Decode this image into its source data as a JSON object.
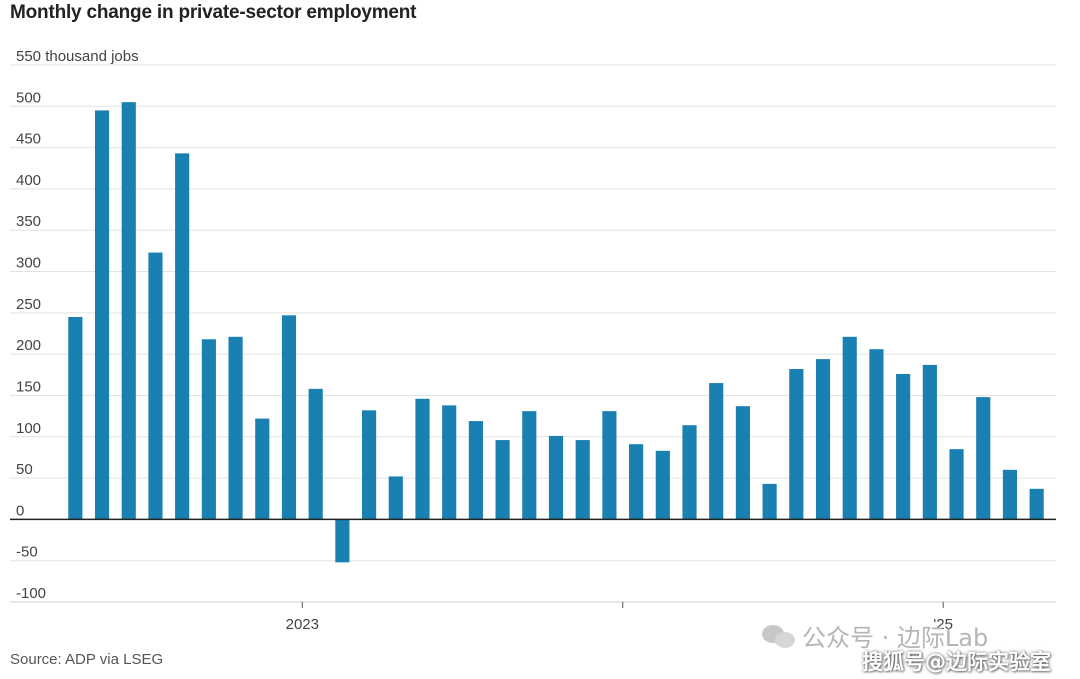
{
  "title": "Monthly change in private-sector employment",
  "source": "Source: ADP via LSEG",
  "watermark": {
    "line1": "公众号 · 边际Lab",
    "line2": "搜狐号@边际实验室"
  },
  "chart_data": {
    "type": "bar",
    "title": "Monthly change in private-sector employment",
    "ylabel": "thousand jobs",
    "ylim": [
      -100,
      550
    ],
    "yticks": [
      -100,
      -50,
      0,
      50,
      100,
      150,
      200,
      250,
      300,
      350,
      400,
      450,
      500,
      550
    ],
    "ytick_labels": [
      "-100",
      "-50",
      "0",
      "50",
      "100",
      "150",
      "200",
      "250",
      "300",
      "350",
      "400",
      "450",
      "500",
      "550 thousand jobs"
    ],
    "xtick_labels": [
      {
        "after_index": 8,
        "label": "2023"
      },
      {
        "after_index": 20,
        "label": ""
      },
      {
        "after_index": 32,
        "label": "'25"
      }
    ],
    "grid": true,
    "color": "#1a7fb1",
    "values": [
      245,
      495,
      505,
      323,
      443,
      218,
      221,
      122,
      247,
      158,
      -52,
      132,
      52,
      146,
      138,
      119,
      96,
      131,
      101,
      96,
      131,
      91,
      83,
      114,
      165,
      137,
      43,
      182,
      194,
      221,
      206,
      176,
      187,
      85,
      148,
      60,
      37
    ]
  }
}
